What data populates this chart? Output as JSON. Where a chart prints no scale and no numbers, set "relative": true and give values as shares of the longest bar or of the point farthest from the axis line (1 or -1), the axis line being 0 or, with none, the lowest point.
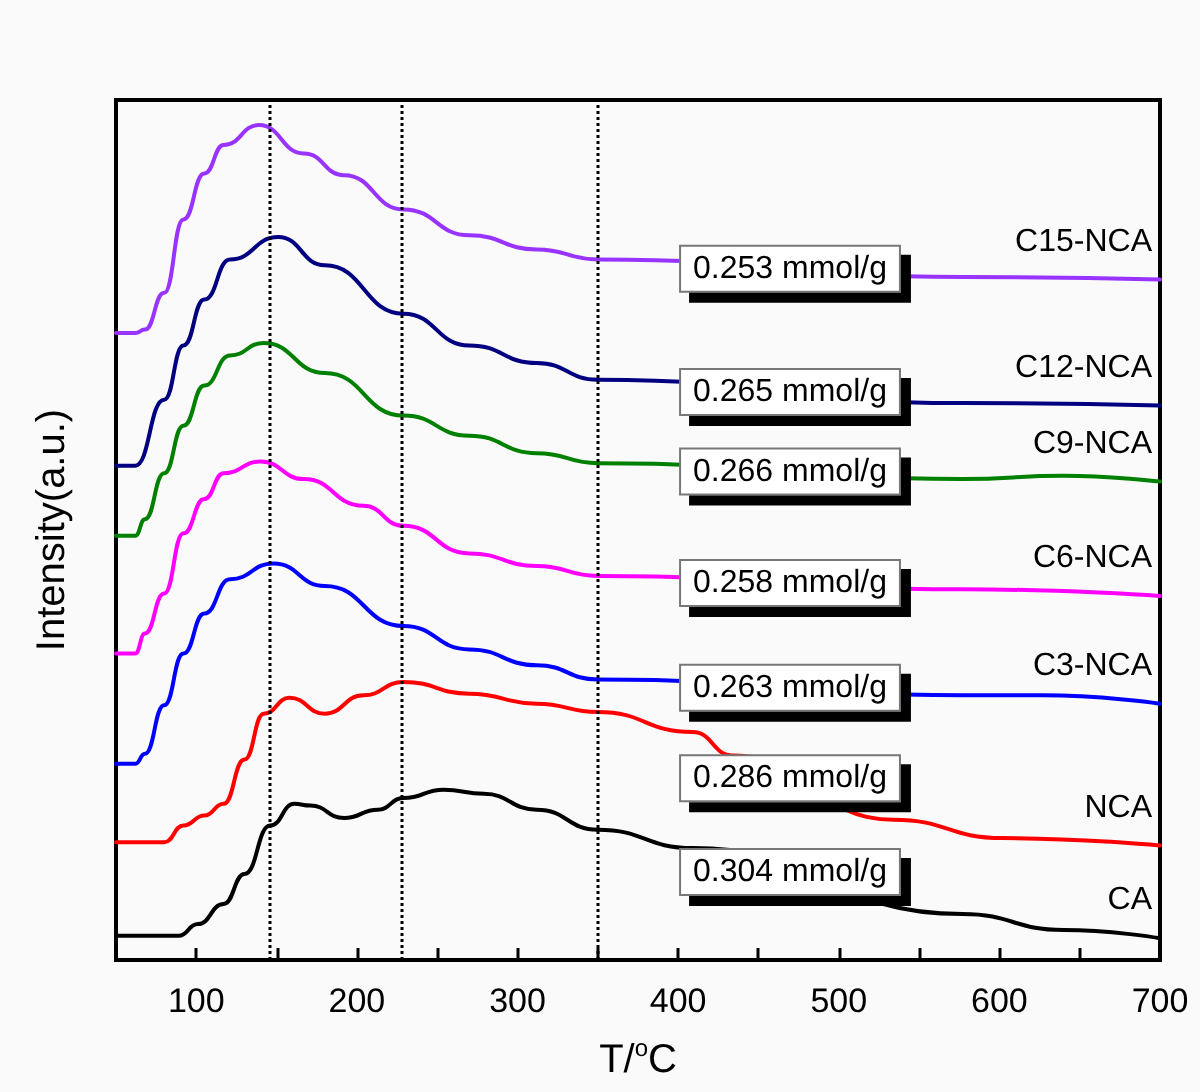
{
  "chart_data": {
    "type": "line",
    "xlabel": "T/$^{o}$C",
    "ylabel": "Intensity(a.u.)",
    "relative": true,
    "xlim": [
      50,
      700
    ],
    "xticks": [
      100,
      {
        "value": 150,
        "label": null
      },
      200,
      {
        "value": 250,
        "label": null
      },
      300,
      {
        "value": 350,
        "label": null
      },
      400,
      {
        "value": 450,
        "label": null
      },
      500,
      {
        "value": 550,
        "label": null
      },
      600,
      {
        "value": 650,
        "label": null
      },
      700
    ],
    "grid": false,
    "legend": false,
    "marker": "none",
    "line_style": "solid",
    "series": [
      {
        "name": "C15-NCA",
        "color": "#9933ff",
        "x": [
          50,
          62,
          68,
          80,
          92,
          105,
          117,
          139,
          167,
          192,
          229,
          270,
          312,
          350,
          577,
          700
        ],
        "values": [
          0.751,
          0.751,
          0.755,
          0.799,
          0.887,
          0.942,
          0.976,
          1.0,
          0.966,
          0.94,
          0.899,
          0.868,
          0.851,
          0.839,
          0.818,
          0.815
        ]
      },
      {
        "name": "C12-NCA",
        "color": "#000080",
        "x": [
          50,
          62,
          80,
          92,
          105,
          121,
          151,
          180,
          229,
          270,
          312,
          350,
          577,
          700
        ],
        "values": [
          0.592,
          0.592,
          0.671,
          0.736,
          0.791,
          0.839,
          0.866,
          0.832,
          0.774,
          0.736,
          0.715,
          0.695,
          0.667,
          0.664
        ]
      },
      {
        "name": "C9-NCA",
        "color": "#008000",
        "x": [
          50,
          62,
          68,
          80,
          92,
          105,
          121,
          142,
          180,
          229,
          270,
          312,
          350,
          577,
          640,
          700
        ],
        "values": [
          0.508,
          0.508,
          0.528,
          0.583,
          0.64,
          0.688,
          0.724,
          0.739,
          0.703,
          0.652,
          0.628,
          0.607,
          0.595,
          0.576,
          0.58,
          0.573
        ]
      },
      {
        "name": "C6-NCA",
        "color": "#ff00ff",
        "x": [
          50,
          62,
          68,
          80,
          92,
          105,
          117,
          140,
          167,
          204,
          229,
          270,
          312,
          350,
          577,
          700
        ],
        "values": [
          0.367,
          0.367,
          0.391,
          0.439,
          0.511,
          0.552,
          0.583,
          0.597,
          0.576,
          0.544,
          0.52,
          0.487,
          0.472,
          0.46,
          0.444,
          0.436
        ]
      },
      {
        "name": "C3-NCA",
        "color": "#0000ff",
        "x": [
          50,
          62,
          68,
          80,
          92,
          105,
          121,
          148,
          180,
          229,
          270,
          312,
          350,
          577,
          627,
          700
        ],
        "values": [
          0.235,
          0.235,
          0.247,
          0.305,
          0.367,
          0.415,
          0.456,
          0.475,
          0.448,
          0.4,
          0.372,
          0.353,
          0.336,
          0.317,
          0.317,
          0.307
        ]
      },
      {
        "name": "NCA",
        "color": "#ff0000",
        "x": [
          50,
          80,
          92,
          105,
          117,
          130,
          142,
          158,
          180,
          204,
          229,
          270,
          312,
          350,
          409,
          434,
          534,
          602,
          700
        ],
        "values": [
          0.141,
          0.141,
          0.161,
          0.173,
          0.187,
          0.24,
          0.295,
          0.314,
          0.295,
          0.317,
          0.333,
          0.319,
          0.307,
          0.297,
          0.273,
          0.245,
          0.168,
          0.146,
          0.137
        ]
      },
      {
        "name": "CA",
        "color": "#000000",
        "x": [
          50,
          89,
          101,
          117,
          130,
          146,
          161,
          171,
          192,
          213,
          229,
          254,
          279,
          312,
          350,
          409,
          577,
          640,
          700
        ],
        "values": [
          0.029,
          0.029,
          0.043,
          0.067,
          0.103,
          0.161,
          0.187,
          0.185,
          0.17,
          0.18,
          0.194,
          0.204,
          0.199,
          0.18,
          0.156,
          0.134,
          0.055,
          0.036,
          0.026
        ]
      }
    ],
    "ref_lines": [
      {
        "axis": "x",
        "value": 145,
        "color": "#000000",
        "line_style": "dotted"
      },
      {
        "axis": "x",
        "value": 228,
        "color": "#000000",
        "line_style": "dotted"
      },
      {
        "axis": "x",
        "value": 350,
        "color": "#000000",
        "line_style": "dotted"
      }
    ],
    "annotations": [
      "0.253 mmol/g",
      "0.265 mmol/g",
      "0.266 mmol/g",
      "0.258 mmol/g",
      "0.263 mmol/g",
      "0.286 mmol/g",
      "0.304 mmol/g"
    ]
  }
}
